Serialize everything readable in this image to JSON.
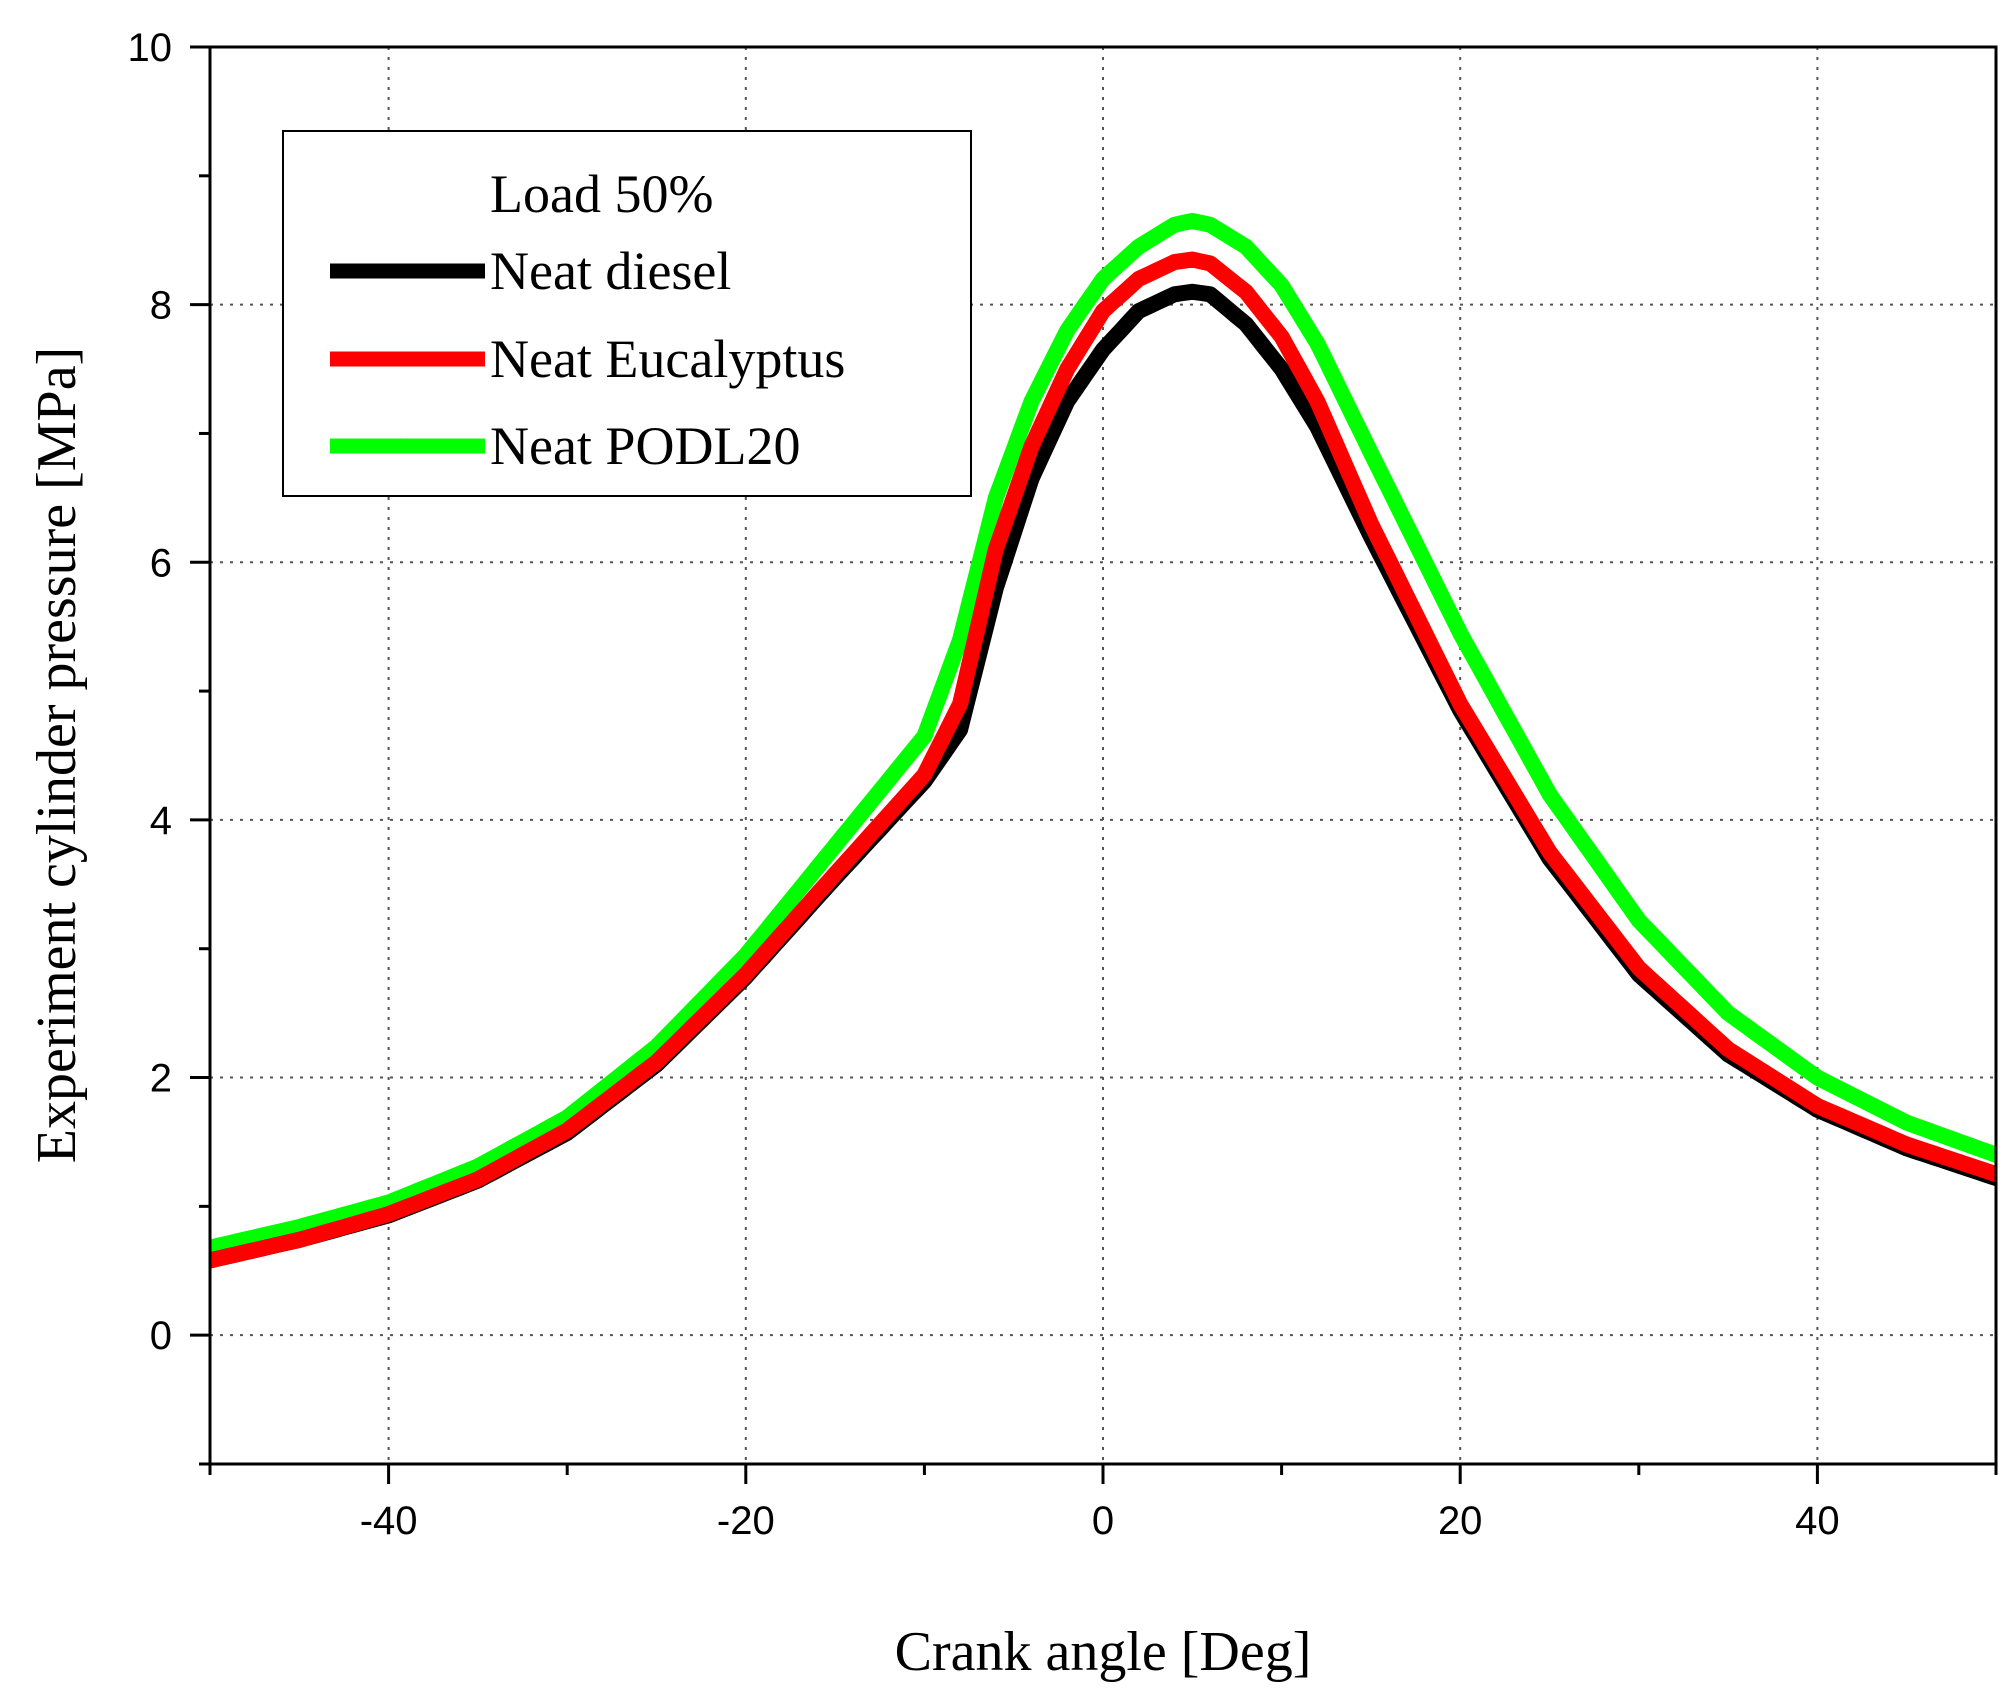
{
  "chart_data": {
    "type": "line",
    "title": "",
    "xlabel": "Crank angle [Deg]",
    "ylabel": "Experiment cylinder pressure [MPa]",
    "xlim": [
      -50,
      50
    ],
    "ylim": [
      -1,
      10
    ],
    "xticks": [
      -40,
      -20,
      0,
      20,
      40
    ],
    "yticks": [
      0,
      2,
      4,
      6,
      8,
      10
    ],
    "grid": true,
    "legend": {
      "title": "Load 50%",
      "placement": "top-left"
    },
    "x": [
      -50,
      -45,
      -40,
      -35,
      -30,
      -25,
      -20,
      -15,
      -10,
      -8,
      -6,
      -4,
      -2,
      0,
      2,
      4,
      5,
      6,
      8,
      10,
      12,
      15,
      20,
      25,
      30,
      35,
      40,
      45,
      50
    ],
    "series": [
      {
        "name": "Neat diesel",
        "color": "#000000",
        "marker": "square",
        "values": [
          0.58,
          0.74,
          0.93,
          1.2,
          1.57,
          2.1,
          2.78,
          3.55,
          4.3,
          4.7,
          5.8,
          6.65,
          7.25,
          7.65,
          7.95,
          8.08,
          8.1,
          8.08,
          7.85,
          7.5,
          7.05,
          6.2,
          4.85,
          3.7,
          2.8,
          2.18,
          1.75,
          1.45,
          1.22
        ]
      },
      {
        "name": "Neat Eucalyptus",
        "color": "#ff0000",
        "marker": "circle",
        "values": [
          0.58,
          0.74,
          0.94,
          1.21,
          1.59,
          2.12,
          2.8,
          3.58,
          4.35,
          4.9,
          6.1,
          6.9,
          7.5,
          7.95,
          8.2,
          8.33,
          8.35,
          8.32,
          8.1,
          7.75,
          7.25,
          6.3,
          4.9,
          3.75,
          2.85,
          2.22,
          1.78,
          1.48,
          1.25
        ]
      },
      {
        "name": "Neat PODL20",
        "color": "#00ff00",
        "marker": "triangle",
        "values": [
          0.68,
          0.84,
          1.03,
          1.31,
          1.69,
          2.24,
          2.95,
          3.8,
          4.65,
          5.4,
          6.5,
          7.25,
          7.8,
          8.2,
          8.45,
          8.62,
          8.65,
          8.62,
          8.45,
          8.15,
          7.7,
          6.85,
          5.45,
          4.2,
          3.22,
          2.5,
          2.0,
          1.65,
          1.4
        ]
      }
    ]
  }
}
